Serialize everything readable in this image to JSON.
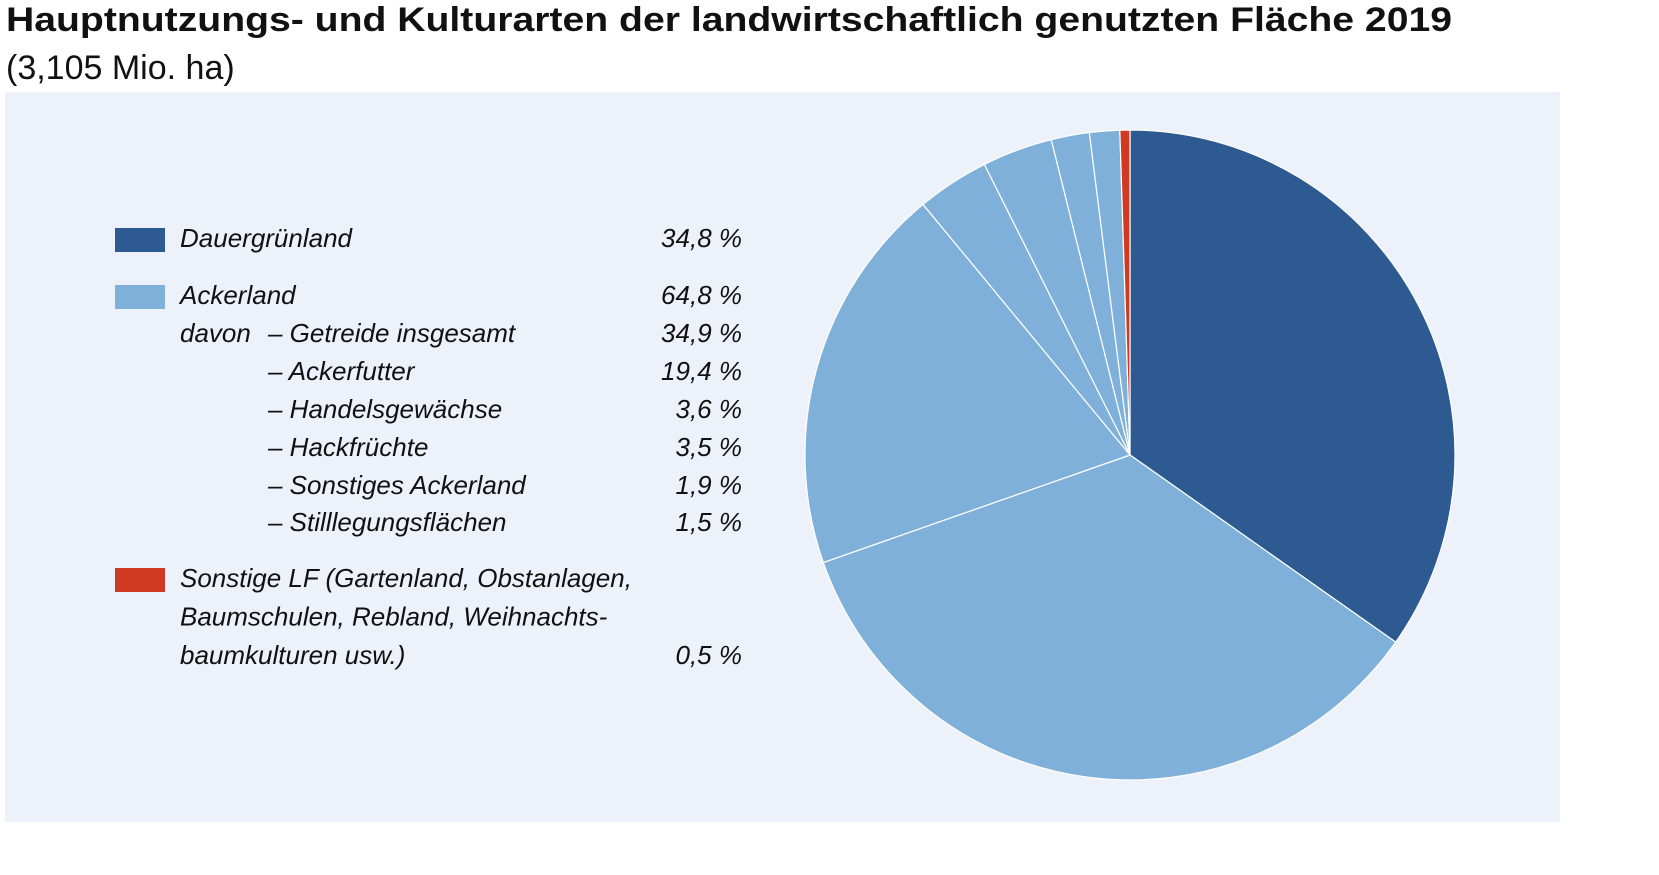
{
  "chart_data": {
    "type": "pie",
    "title": "Hauptnutzungs- und Kulturarten der landwirtschaftlich genutzten Fläche 2019",
    "subtitle": "(3,105 Mio. ha)",
    "categories": [
      "Dauergrünland",
      "– Getreide insgesamt",
      "– Ackerfutter",
      "– Handelsgewächse",
      "– Hackfrüchte",
      "– Sonstiges Ackerland",
      "– Stilllegungsflächen",
      "Sonstige LF (Gartenland, Obstanlagen,\nBaumschulen, Rebland, Weihnachts-\nbaumkulturen usw.)"
    ],
    "values": [
      34.8,
      34.9,
      19.4,
      3.6,
      3.5,
      1.9,
      1.5,
      0.5
    ],
    "value_labels": [
      "34,8 %",
      "34,9 %",
      "19,4 %",
      "3,6 %",
      "3,5 %",
      "1,9 %",
      "1,5 %",
      "0,5 %"
    ],
    "colors": [
      "#2c5a91",
      "#7fb0d9",
      "#7fb0d9",
      "#7fb0d9",
      "#7fb0d9",
      "#7fb0d9",
      "#7fb0d9",
      "#d13a22"
    ],
    "group": {
      "name": "Ackerland",
      "value": 64.8,
      "value_label": "64,8 %",
      "color": "#7fb0d9",
      "prefix": "davon"
    }
  }
}
